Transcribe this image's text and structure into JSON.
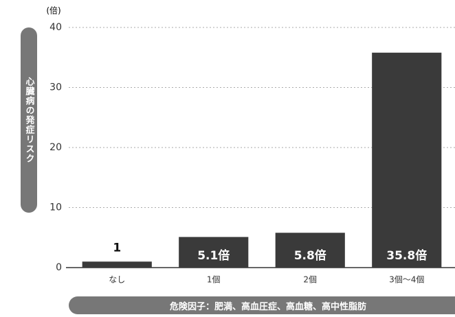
{
  "chart_data": {
    "type": "bar",
    "y_unit": "(倍)",
    "y_label": "心臓病の発症リスク",
    "x_label": "危険因子：肥満、高血圧症、高血糖、高中性脂肪",
    "categories": [
      "なし",
      "1個",
      "2個",
      "3個〜4個"
    ],
    "values": [
      1,
      5.1,
      5.8,
      35.8
    ],
    "value_labels": [
      "1",
      "5.1倍",
      "5.8倍",
      "35.8倍"
    ],
    "color": "#3a3a3a",
    "ylim": [
      0,
      40
    ],
    "yticks": [
      0,
      10,
      20,
      30,
      40
    ],
    "grid": true
  }
}
